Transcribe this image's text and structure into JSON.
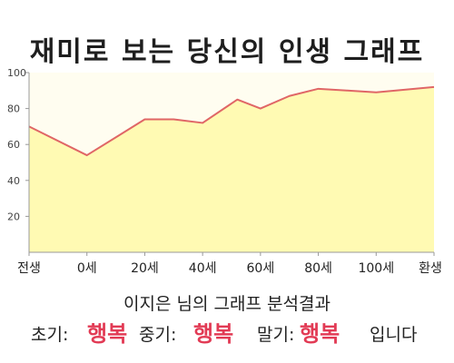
{
  "title": "재미로 보는 당신의 인생 그래프",
  "chart_data": {
    "type": "area",
    "x_categories": [
      "전생",
      "0세",
      "20세",
      "40세",
      "60세",
      "80세",
      "100세",
      "환생"
    ],
    "yticks": [
      20,
      40,
      60,
      80,
      100
    ],
    "ylim": [
      0,
      100
    ],
    "x": [
      0,
      1,
      2,
      2.5,
      3,
      3.6,
      4,
      4.5,
      5,
      5.5,
      6,
      7
    ],
    "y": [
      70,
      54,
      74,
      74,
      72,
      85,
      80,
      87,
      91,
      90,
      89,
      92
    ],
    "colors": {
      "line": "#e06666",
      "fill": "#fffab3",
      "plot_bg": "#fffdf0",
      "axis": "#999999"
    },
    "grid": false
  },
  "caption": "이지은  님의 그래프 분석결과",
  "result": {
    "early_label": "초기:",
    "early_value": "행복",
    "middle_label": "중기:",
    "middle_value": "행복",
    "late_label": "말기:",
    "late_value": "행복",
    "ending": "입니다"
  }
}
